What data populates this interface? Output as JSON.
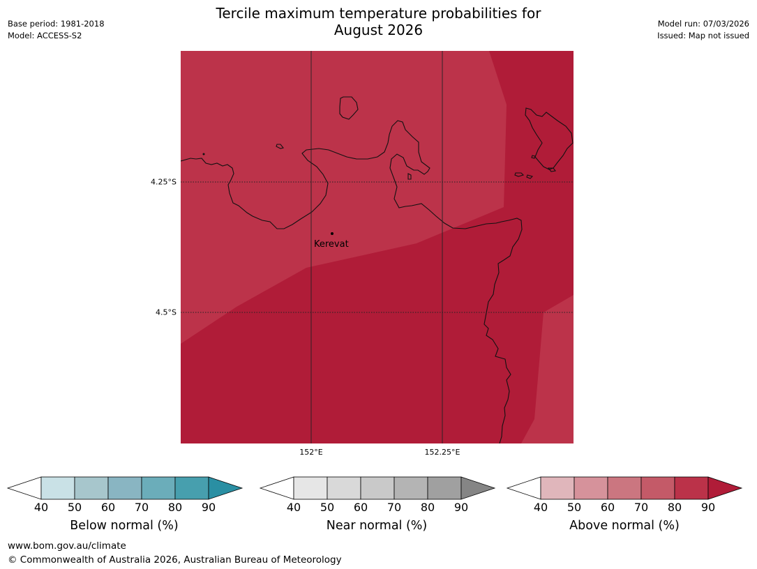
{
  "title": {
    "line1": "Tercile maximum temperature probabilities for",
    "line2": "August 2026"
  },
  "meta_left": {
    "base_period": "Base period: 1981-2018",
    "model": "Model: ACCESS-S2"
  },
  "meta_right": {
    "model_run": "Model run: 07/03/2026",
    "issued": "Issued: Map not issued"
  },
  "map": {
    "lat_labels": [
      "4.25°S",
      "4.5°S"
    ],
    "lon_labels": [
      "152°E",
      "152.25°E"
    ],
    "place": "Kerevat",
    "colors": {
      "above_70_80": "#bc334a",
      "above_80_90": "#b01c38"
    }
  },
  "colorbars": [
    {
      "title": "Below normal (%)",
      "ticks": [
        "40",
        "50",
        "60",
        "70",
        "80",
        "90"
      ],
      "colors": [
        "#c9e1e6",
        "#a7c6cc",
        "#89b5c2",
        "#6badba",
        "#479fae",
        "#2a8fa3"
      ]
    },
    {
      "title": "Near normal (%)",
      "ticks": [
        "40",
        "50",
        "60",
        "70",
        "80",
        "90"
      ],
      "colors": [
        "#e6e6e6",
        "#d9d9d9",
        "#c9c9c9",
        "#b4b4b4",
        "#a0a0a0",
        "#858585"
      ]
    },
    {
      "title": "Above normal (%)",
      "ticks": [
        "40",
        "50",
        "60",
        "70",
        "80",
        "90"
      ],
      "colors": [
        "#e0b6bb",
        "#d6929b",
        "#cb7680",
        "#c45a68",
        "#bb3249",
        "#b01c38"
      ]
    }
  ],
  "footer": {
    "url": "www.bom.gov.au/climate",
    "copyright": "© Commonwealth of Australia 2026, Australian Bureau of Meteorology"
  }
}
